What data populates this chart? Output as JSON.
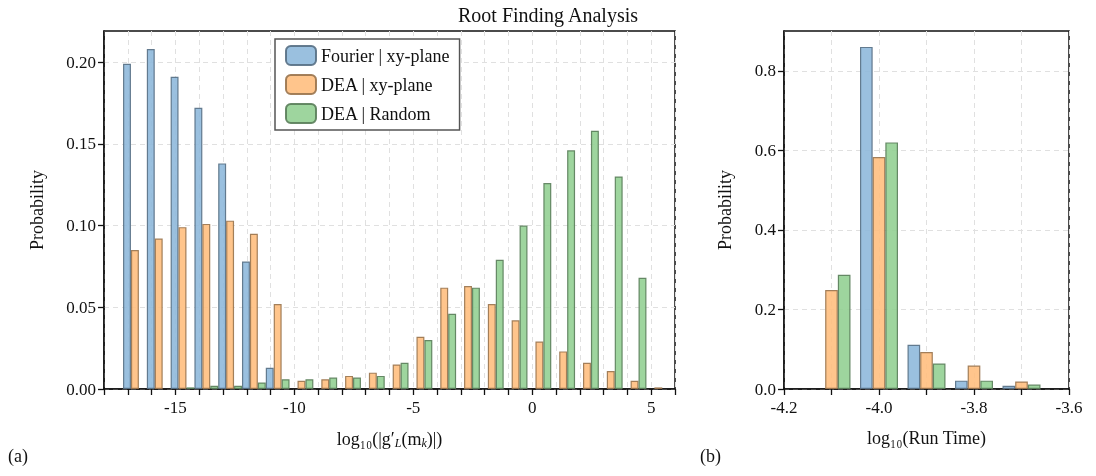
{
  "chart_data": [
    {
      "type": "histogram",
      "title": "Root Finding Analysis",
      "xlabel": "log₁₀(|g′$_{L}$(m$_{k}$)|)",
      "ylabel": "Probability",
      "annotations": [
        "(a)"
      ],
      "bins": [
        -17.2,
        -16.2,
        -15.2,
        -14.2,
        -13.2,
        -12.2,
        -11.2,
        -10.2,
        -9.2,
        -8.2,
        -7.2,
        -6.2,
        -5.2,
        -4.2,
        -3.2,
        -2.2,
        -1.2,
        -0.2,
        0.8,
        1.8,
        2.8,
        3.8,
        4.8,
        5.8
      ],
      "series": [
        {
          "name": "Fourier | xy-plane",
          "color": "#8fb9dc",
          "values": [
            0.199,
            0.208,
            0.191,
            0.172,
            0.138,
            0.078,
            0.013,
            0,
            0,
            0,
            0,
            0,
            0,
            0,
            0,
            0,
            0,
            0,
            0,
            0,
            0,
            0,
            0
          ]
        },
        {
          "name": "DEA | xy-plane",
          "color": "#ffbf80",
          "values": [
            0.085,
            0.092,
            0.099,
            0.101,
            0.103,
            0.095,
            0.052,
            0.005,
            0.006,
            0.008,
            0.01,
            0.015,
            0.032,
            0.062,
            0.063,
            0.052,
            0.042,
            0.029,
            0.023,
            0.016,
            0.011,
            0.005,
            0.001
          ]
        },
        {
          "name": "DEA | Random",
          "color": "#94d094",
          "values": [
            0,
            0,
            0.001,
            0.002,
            0.002,
            0.004,
            0.006,
            0.006,
            0.007,
            0.007,
            0.008,
            0.016,
            0.03,
            0.046,
            0.062,
            0.079,
            0.1,
            0.126,
            0.146,
            0.158,
            0.13,
            0.068,
            0
          ]
        }
      ],
      "xlim": [
        -18,
        6
      ],
      "xticks": [
        {
          "value": -18,
          "label": null
        },
        {
          "value": -17,
          "label": null
        },
        {
          "value": -16,
          "label": null
        },
        {
          "value": -15,
          "label": "-15"
        },
        {
          "value": -14,
          "label": null
        },
        {
          "value": -13,
          "label": null
        },
        {
          "value": -12,
          "label": null
        },
        {
          "value": -11,
          "label": null
        },
        {
          "value": -10,
          "label": "-10"
        },
        {
          "value": -9,
          "label": null
        },
        {
          "value": -8,
          "label": null
        },
        {
          "value": -7,
          "label": null
        },
        {
          "value": -6,
          "label": null
        },
        {
          "value": -5,
          "label": "-5"
        },
        {
          "value": -4,
          "label": null
        },
        {
          "value": -3,
          "label": null
        },
        {
          "value": -2,
          "label": null
        },
        {
          "value": -1,
          "label": null
        },
        {
          "value": 0,
          "label": "0"
        },
        {
          "value": 1,
          "label": null
        },
        {
          "value": 2,
          "label": null
        },
        {
          "value": 3,
          "label": null
        },
        {
          "value": 4,
          "label": null
        },
        {
          "value": 5,
          "label": "5"
        },
        {
          "value": 6,
          "label": null
        }
      ],
      "ylim": [
        0,
        0.219
      ],
      "yticks": [
        {
          "value": 0,
          "label": "0.00"
        },
        {
          "value": 0.05,
          "label": "0.05"
        },
        {
          "value": 0.1,
          "label": "0.10"
        },
        {
          "value": 0.15,
          "label": "0.15"
        },
        {
          "value": 0.2,
          "label": "0.20"
        }
      ],
      "grid": true,
      "legend": "top"
    },
    {
      "type": "histogram",
      "xlabel": "log₁₀(Run Time)",
      "ylabel": "Probability",
      "annotations": [
        "(b)"
      ],
      "bins": [
        -4.15,
        -4.05,
        -3.95,
        -3.85,
        -3.75,
        -3.65
      ],
      "series": [
        {
          "color": "#8fb9dc",
          "values": [
            0,
            0.86,
            0.111,
            0.021,
            0.008
          ]
        },
        {
          "color": "#ffbf80",
          "values": [
            0.249,
            0.583,
            0.093,
            0.059,
            0.019
          ]
        },
        {
          "color": "#94d094",
          "values": [
            0.287,
            0.62,
            0.064,
            0.021,
            0.011
          ]
        }
      ],
      "xlim": [
        -4.2,
        -3.6
      ],
      "xticks": [
        {
          "value": -4.2,
          "label": "-4.2"
        },
        {
          "value": -4.1,
          "label": null
        },
        {
          "value": -4.0,
          "label": "-4.0"
        },
        {
          "value": -3.9,
          "label": null
        },
        {
          "value": -3.8,
          "label": "-3.8"
        },
        {
          "value": -3.7,
          "label": null
        },
        {
          "value": -3.6,
          "label": "-3.6"
        }
      ],
      "ylim": [
        0,
        0.9
      ],
      "yticks": [
        {
          "value": 0,
          "label": "0.0"
        },
        {
          "value": 0.2,
          "label": "0.2"
        },
        {
          "value": 0.4,
          "label": "0.4"
        },
        {
          "value": 0.6,
          "label": "0.6"
        },
        {
          "value": 0.8,
          "label": "0.8"
        }
      ],
      "grid": true
    }
  ]
}
